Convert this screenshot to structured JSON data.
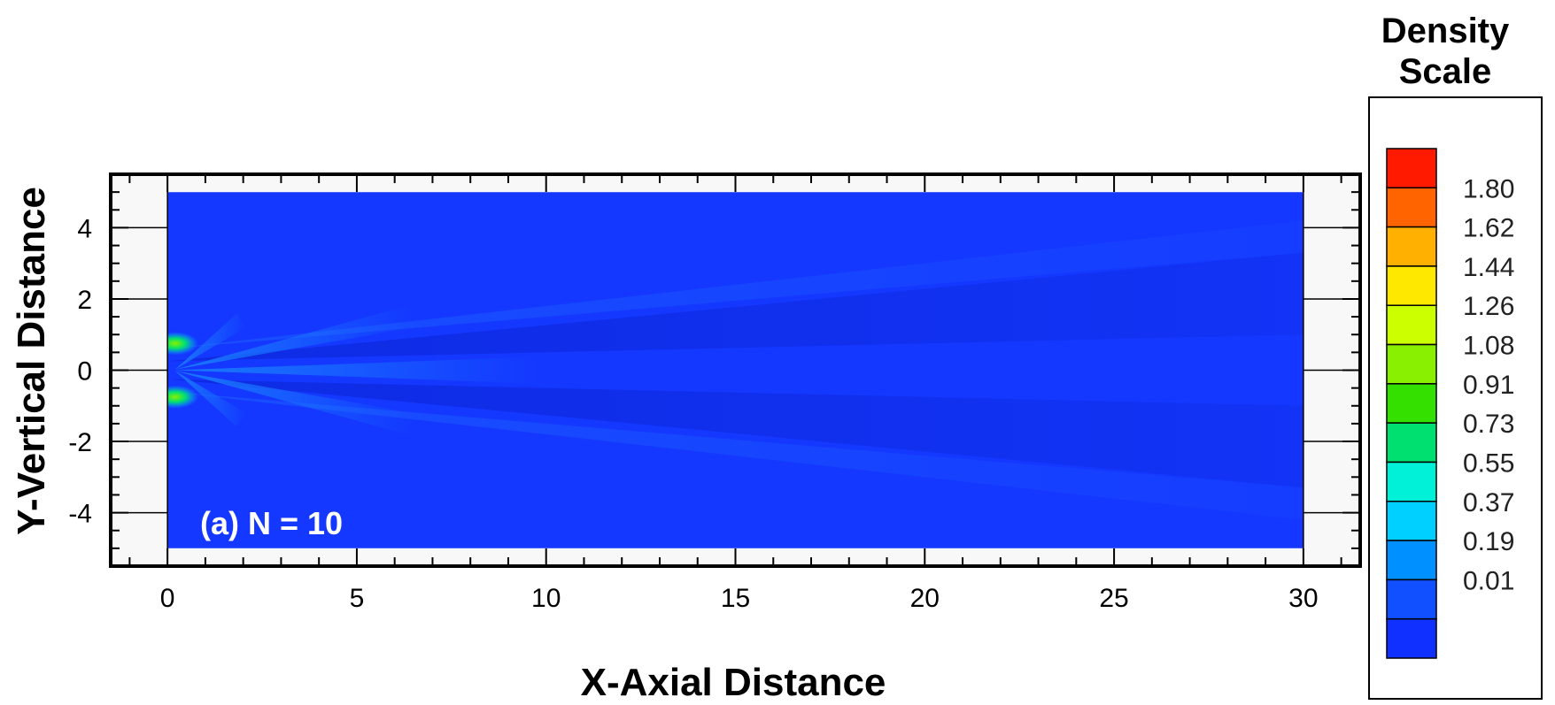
{
  "chart_data": {
    "type": "heatmap",
    "title": "",
    "xlabel": "X-Axial Distance",
    "ylabel": "Y-Vertical Distance",
    "xlim": [
      -1.5,
      31.5
    ],
    "ylim": [
      -5.5,
      5.5
    ],
    "x_ticks": [
      0,
      5,
      10,
      15,
      20,
      25,
      30
    ],
    "y_ticks": [
      4,
      2,
      0,
      -2,
      -4
    ],
    "domain": {
      "x": [
        0,
        30
      ],
      "y": [
        -5,
        5
      ]
    },
    "annotation": "(a) N = 10",
    "colorbar": {
      "title_line1": "Density",
      "title_line2": "Scale",
      "levels": [
        1.8,
        1.62,
        1.44,
        1.26,
        1.08,
        0.91,
        0.73,
        0.55,
        0.37,
        0.19,
        0.01
      ],
      "level_labels": [
        "1.80",
        "1.62",
        "1.44",
        "1.26",
        "1.08",
        "0.91",
        "0.73",
        "0.55",
        "0.37",
        "0.19",
        "0.01"
      ],
      "colors": [
        "#ff1a00",
        "#ff6400",
        "#ffb000",
        "#ffe800",
        "#ccff00",
        "#88f000",
        "#33e000",
        "#00e070",
        "#00f0d8",
        "#00d0ff",
        "#0090ff",
        "#1050ff",
        "#1030ff"
      ]
    },
    "background_color": "#1438ff",
    "features": [
      {
        "name": "upper-jet",
        "x": 0.2,
        "y": 0.75,
        "value": 1.08
      },
      {
        "name": "lower-jet",
        "x": 0.2,
        "y": -0.75,
        "value": 1.08
      }
    ]
  }
}
